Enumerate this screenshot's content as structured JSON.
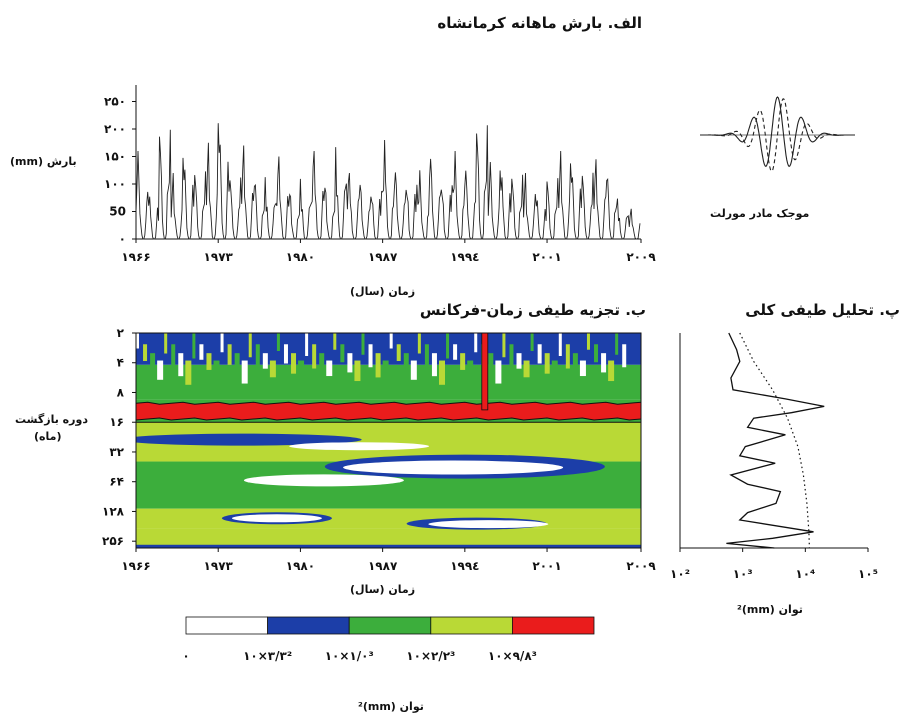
{
  "colors": {
    "band0": "#ffffff",
    "band1": "#1c3ea8",
    "band2": "#3cae3c",
    "band3": "#b9d936",
    "band4": "#ea1c1c",
    "line": "#111111"
  },
  "panel_a": {
    "title": "الف. بارش ماهانه کرمانشاه",
    "ylabel": "بارش (mm)",
    "xlabel": "زمان (سال)",
    "yticks": [
      "٠",
      "50",
      "١٠٠",
      "١۵٠",
      "٢٠٠",
      "٢۵٠"
    ],
    "xticks": [
      "١٩۶۶",
      "١٩٧٣",
      "١٩٨٠",
      "١٩٨٧",
      "١٩٩٤",
      "٢٠٠١",
      "٢٠٠٩"
    ],
    "wavelet_caption": "موجک مادر مورلت"
  },
  "panel_b": {
    "title": "ب. تجزیه طیفی زمان-فرکانس",
    "ylabel_line1": "دوره بازگشت",
    "ylabel_line2": "(ماه)",
    "yticks": [
      "٢",
      "۴",
      "٨",
      "١۶",
      "٣٢",
      "۶۴",
      "١٢٨",
      "٢۵۶"
    ],
    "xticks": [
      "١٩۶۶",
      "١٩٧٣",
      "١٩٨٠",
      "١٩٨٧",
      "١٩٩٤",
      "٢٠٠١",
      "٢٠٠٩"
    ],
    "xlabel": "زمان (سال)"
  },
  "panel_c": {
    "title": "پ. تحلیل طیفی کلی",
    "xticks": [
      "١٠²",
      "١٠³",
      "١٠⁴",
      "١٠⁵"
    ],
    "xlabel": "توان (mm)²"
  },
  "colorbar": {
    "labels": [
      "٠",
      "٣/٣×١٠²",
      "١/٠×١٠³",
      "٢/٢×١٠³",
      "٩/٨×١٠³"
    ],
    "title": "توان (mm)²"
  },
  "chart_data": [
    {
      "type": "line",
      "title": "الف. بارش ماهانه کرمانشاه",
      "ylabel": "بارش (mm)",
      "xlabel": "زمان (سال)",
      "xlim": [
        1966,
        2009
      ],
      "ylim": [
        0,
        280
      ],
      "x_tick_values": [
        1966,
        1973,
        1980,
        1987,
        1994,
        2001,
        2009
      ],
      "y_tick_values": [
        0,
        50,
        100,
        150,
        200,
        250
      ],
      "series": [
        {
          "x": [
            1966,
            1967,
            1968,
            1969,
            1970,
            1971,
            1972,
            1973,
            1974,
            1975,
            1976,
            1977,
            1978,
            1979,
            1980,
            1981,
            1982,
            1983,
            1984,
            1985,
            1986,
            1987,
            1988,
            1989,
            1990,
            1991,
            1992,
            1993,
            1994,
            1995,
            1996,
            1997,
            1998,
            1999,
            2000,
            2001,
            2002,
            2003,
            2004,
            2005,
            2006,
            2007,
            2008
          ],
          "annual_peak_mm": [
            160,
            110,
            255,
            120,
            180,
            150,
            175,
            245,
            130,
            170,
            140,
            130,
            150,
            110,
            120,
            160,
            120,
            175,
            120,
            120,
            140,
            180,
            140,
            150,
            125,
            160,
            140,
            160,
            130,
            280,
            140,
            160,
            150,
            120,
            100,
            135,
            160,
            160,
            140,
            145,
            155,
            85,
            55
          ]
        }
      ]
    },
    {
      "type": "heatmap",
      "title": "ب. تجزیه طیفی زمان-فرکانس",
      "xlabel": "زمان (سال)",
      "ylabel": "دوره بازگشت (ماه)",
      "xlim": [
        1966,
        2009
      ],
      "y_scale": "log2",
      "y_tick_values": [
        2,
        4,
        8,
        16,
        32,
        64,
        128,
        256
      ],
      "levels": [
        0,
        330,
        1000,
        2200,
        9800
      ],
      "dominant_period_band_months": [
        10,
        16
      ]
    },
    {
      "type": "line",
      "title": "پ. تحلیل طیفی کلی",
      "xlabel": "توان (mm)²",
      "x_scale": "log10",
      "xlim": [
        100,
        100000
      ],
      "x_tick_values": [
        100,
        1000,
        10000,
        100000
      ],
      "series": [
        {
          "style": "solid",
          "period_months": [
            2,
            3,
            4,
            6,
            8,
            10,
            12,
            14,
            16,
            20,
            24,
            32,
            40,
            48,
            64,
            80,
            96,
            128,
            160,
            192,
            256,
            300,
            340,
            380
          ],
          "power": [
            600,
            800,
            900,
            650,
            700,
            4800,
            20000,
            6000,
            1500,
            1200,
            4800,
            1100,
            900,
            3300,
            650,
            1200,
            4000,
            3400,
            1200,
            900,
            13500,
            3000,
            550,
            3200
          ]
        },
        {
          "style": "dotted",
          "period_months": [
            2,
            4,
            8,
            16,
            32,
            64,
            128,
            256,
            380
          ],
          "power": [
            900,
            1500,
            3000,
            5200,
            7600,
            9300,
            10600,
            11400,
            11600
          ]
        }
      ]
    }
  ]
}
